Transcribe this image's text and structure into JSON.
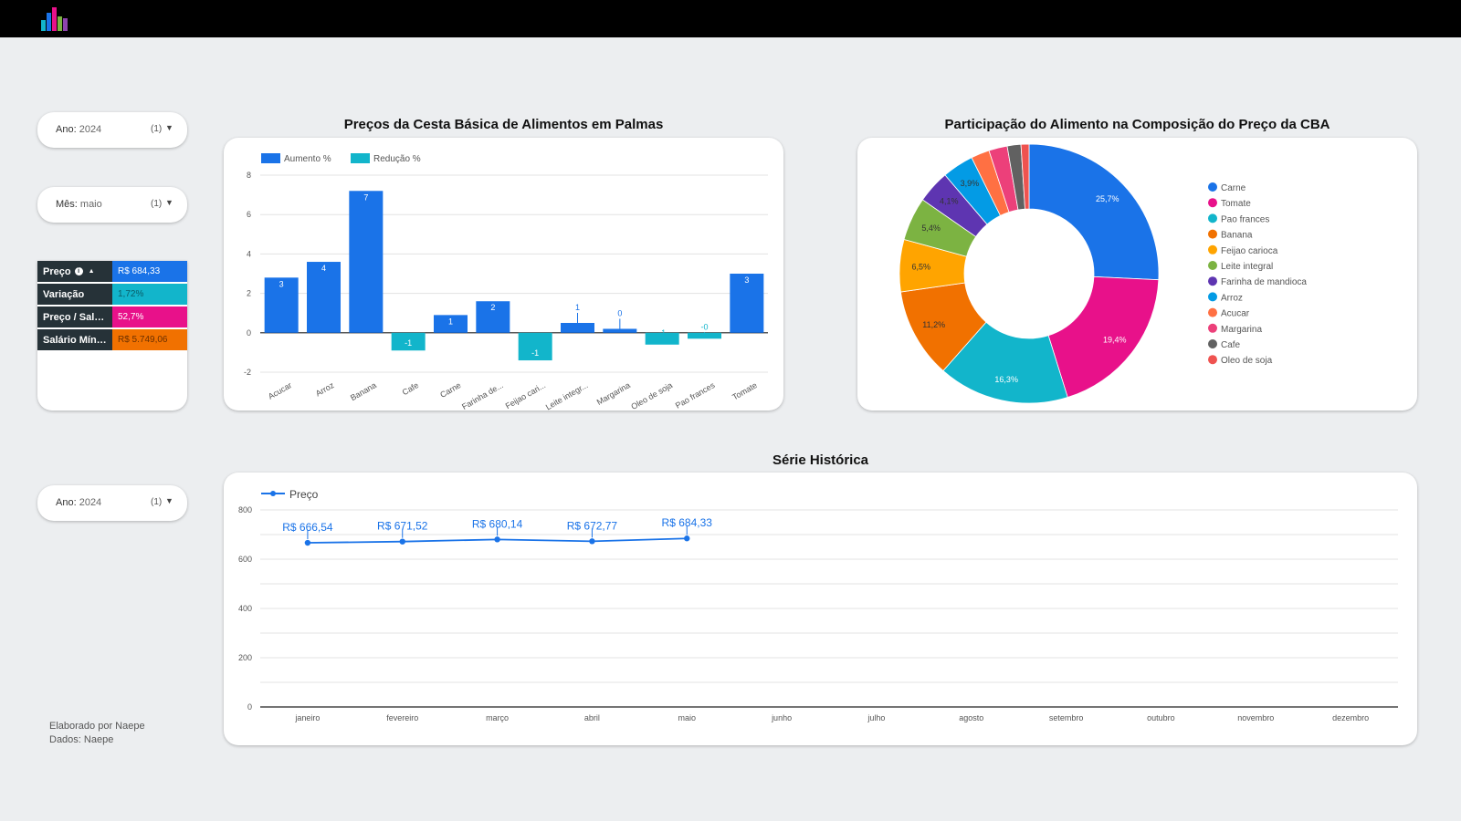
{
  "filters": {
    "year_top": {
      "label": "Ano:",
      "value": "2024",
      "count": "(1)"
    },
    "month": {
      "label": "Mês:",
      "value": "maio",
      "count": "(1)"
    },
    "year_bottom": {
      "label": "Ano:",
      "value": "2024",
      "count": "(1)"
    }
  },
  "kpis": [
    {
      "label": "Preço",
      "value": "R$ 684,33",
      "color": "#1a73e8"
    },
    {
      "label": "Variação",
      "value": "1,72%",
      "color": "#12b5cb"
    },
    {
      "label": "Preço / Sal…",
      "value": "52,7%",
      "color": "#e8118a"
    },
    {
      "label": "Salário Mín…",
      "value": "R$ 5.749,06",
      "color": "#f17100"
    }
  ],
  "bar_title": "Preços da Cesta Básica de Alimentos em Palmas",
  "pie_title": "Participação do Alimento na Composição do Preço da CBA",
  "line_title": "Série Histórica",
  "credits": {
    "line1": "Elaborado por Naepe",
    "line2": "Dados: Naepe"
  },
  "chart_data": [
    {
      "type": "bar",
      "title": "Preços da Cesta Básica de Alimentos em Palmas",
      "categories": [
        "Acucar",
        "Arroz",
        "Banana",
        "Cafe",
        "Carne",
        "Farinha de...",
        "Feijao cari...",
        "Leite integr...",
        "Margarina",
        "Oleo de soja",
        "Pao frances",
        "Tomate"
      ],
      "series": [
        {
          "name": "Aumento %",
          "color": "#1a73e8",
          "values": [
            2.8,
            3.6,
            7.2,
            null,
            0.9,
            1.6,
            null,
            0.5,
            0.2,
            null,
            null,
            3.0
          ],
          "labels": [
            "3",
            "4",
            "7",
            "",
            "1",
            "2",
            "",
            "1",
            "0",
            "",
            "",
            "3"
          ]
        },
        {
          "name": "Redução %",
          "color": "#12b5cb",
          "values": [
            null,
            null,
            null,
            -0.9,
            null,
            null,
            -1.4,
            null,
            null,
            -0.6,
            -0.3,
            null
          ],
          "labels": [
            "",
            "",
            "",
            "-1",
            "",
            "",
            "-1",
            "",
            "",
            "-1",
            "-0",
            ""
          ]
        }
      ],
      "ylim": [
        -2,
        8
      ],
      "yticks": [
        "8",
        "6",
        "4",
        "2",
        "0",
        "-2"
      ],
      "legend": "top-left",
      "grid": true
    },
    {
      "type": "pie",
      "title": "Participação do Alimento na Composição do Preço da CBA",
      "slices": [
        {
          "name": "Carne",
          "value": 25.7,
          "label": "25,7%",
          "color": "#1a73e8"
        },
        {
          "name": "Tomate",
          "value": 19.4,
          "label": "19,4%",
          "color": "#e8118a"
        },
        {
          "name": "Pao frances",
          "value": 16.3,
          "label": "16,3%",
          "color": "#12b5cb"
        },
        {
          "name": "Banana",
          "value": 11.2,
          "label": "11,2%",
          "color": "#f17100"
        },
        {
          "name": "Feijao carioca",
          "value": 6.5,
          "label": "6,5%",
          "color": "#ffa400"
        },
        {
          "name": "Leite integral",
          "value": 5.4,
          "label": "5,4%",
          "color": "#7cb342"
        },
        {
          "name": "Farinha de mandioca",
          "value": 4.1,
          "label": "4,1%",
          "color": "#5e35b1"
        },
        {
          "name": "Arroz",
          "value": 3.9,
          "label": "3,9%",
          "color": "#039be5"
        },
        {
          "name": "Acucar",
          "value": 2.3,
          "label": "",
          "color": "#ff7043"
        },
        {
          "name": "Margarina",
          "value": 2.3,
          "label": "",
          "color": "#ec407a"
        },
        {
          "name": "Cafe",
          "value": 1.7,
          "label": "",
          "color": "#616161"
        },
        {
          "name": "Oleo de soja",
          "value": 1.0,
          "label": "",
          "color": "#ef5350"
        }
      ],
      "donut": true,
      "legend": "right"
    },
    {
      "type": "line",
      "title": "Série Histórica",
      "categories": [
        "janeiro",
        "fevereiro",
        "março",
        "abril",
        "maio",
        "junho",
        "julho",
        "agosto",
        "setembro",
        "outubro",
        "novembro",
        "dezembro"
      ],
      "series": [
        {
          "name": "Preço",
          "color": "#1a73e8",
          "values": [
            666.54,
            671.52,
            680.14,
            672.77,
            684.33,
            null,
            null,
            null,
            null,
            null,
            null,
            null
          ],
          "labels": [
            "R$ 666,54",
            "R$ 671,52",
            "R$ 680,14",
            "R$ 672,77",
            "R$ 684,33"
          ]
        }
      ],
      "ylim": [
        0,
        800
      ],
      "yticks": [
        "800",
        "600",
        "400",
        "200",
        "0"
      ],
      "legend": "top-left",
      "grid": true
    }
  ]
}
